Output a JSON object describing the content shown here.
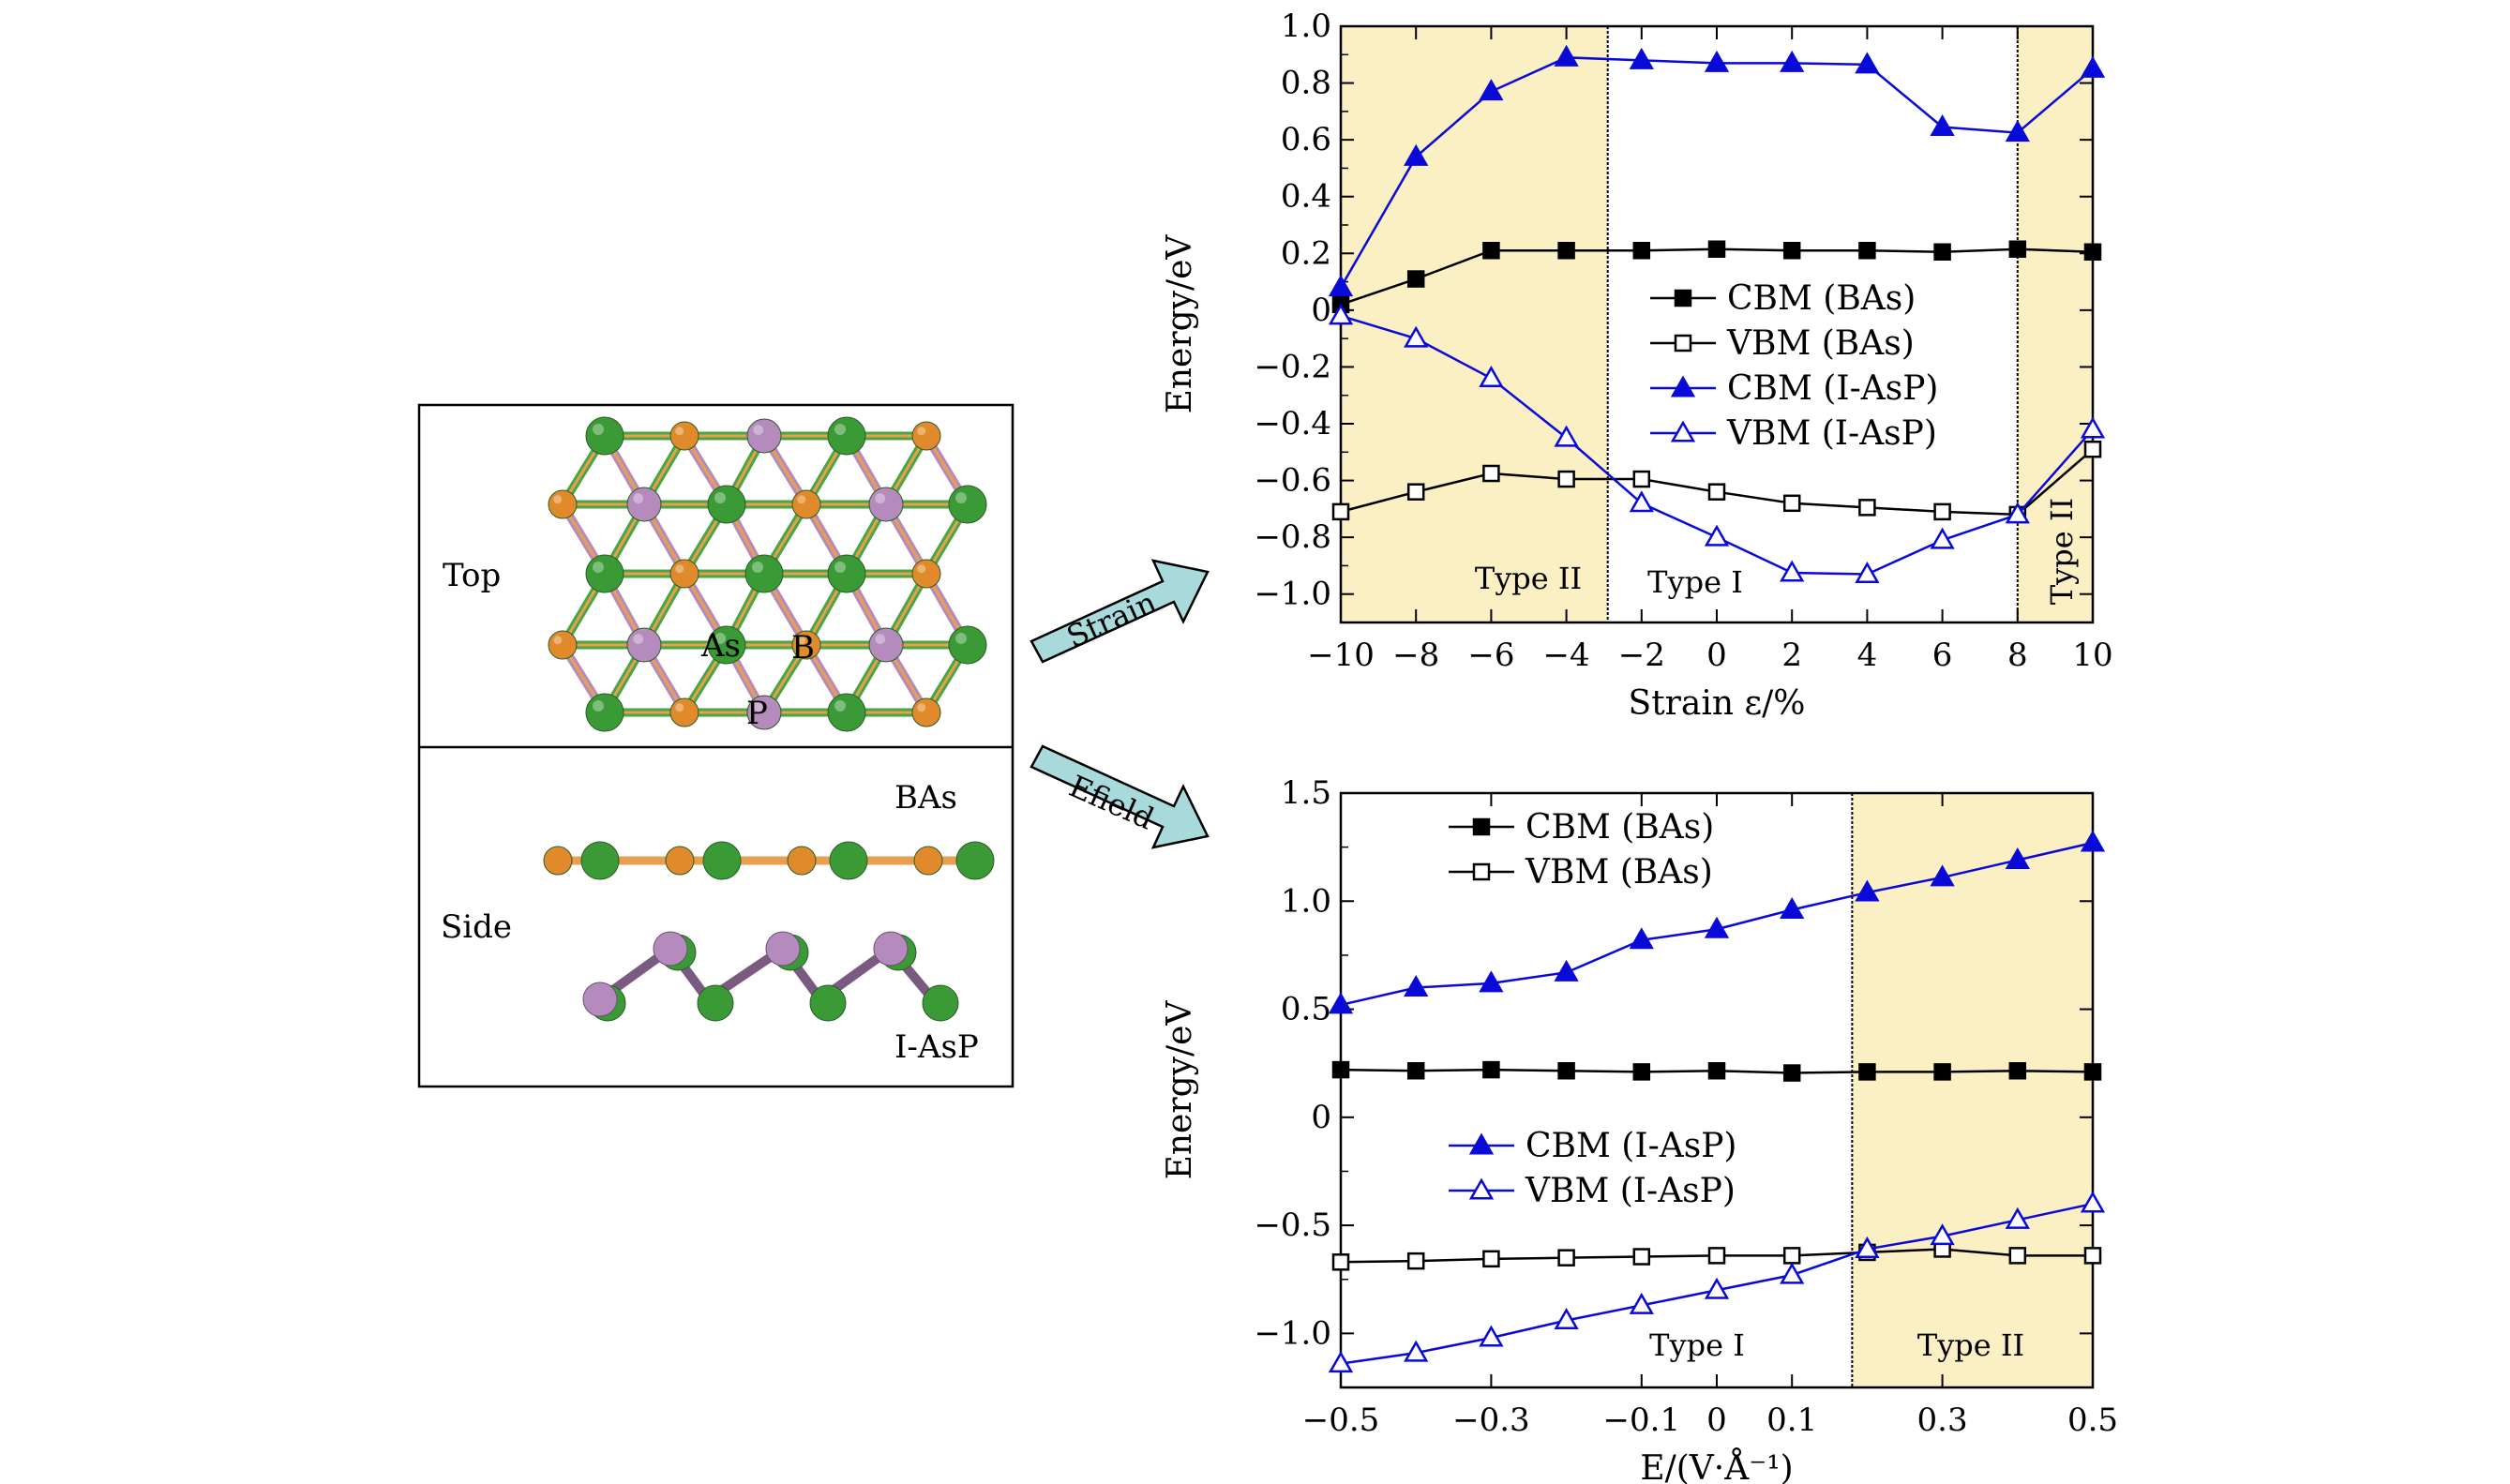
{
  "structure_panel": {
    "top_label": "Top",
    "side_label": "Side",
    "atom_as": "As",
    "atom_b": "B",
    "atom_p": "P",
    "layer_bas": "BAs",
    "layer_iasp": "I-AsP",
    "colors": {
      "b_atom": "#e08a2c",
      "as_atom": "#3a9a36",
      "p_atom": "#b58bbd"
    }
  },
  "arrows": {
    "strain": "Strain",
    "efield": "Efield",
    "fill": "#a8dadc"
  },
  "chart_data": [
    {
      "type": "line",
      "xlabel": "Strain ε/%",
      "ylabel": "Energy/eV",
      "xlim": [
        -10,
        10
      ],
      "ylim": [
        -1.1,
        1.0
      ],
      "xticks": [
        "−10",
        "−8",
        "−6",
        "−4",
        "−2",
        "0",
        "2",
        "4",
        "6",
        "8",
        "10"
      ],
      "xtick_values": [
        -10,
        -8,
        -6,
        -4,
        -2,
        0,
        2,
        4,
        6,
        8,
        10
      ],
      "yticks": [
        "1.0",
        "0.8",
        "0.6",
        "0.4",
        "0.2",
        "0",
        "−0.2",
        "−0.4",
        "−0.6",
        "−0.8",
        "−1.0"
      ],
      "ytick_values": [
        1.0,
        0.8,
        0.6,
        0.4,
        0.2,
        0,
        -0.2,
        -0.4,
        -0.6,
        -0.8,
        -1.0
      ],
      "x": [
        -10,
        -8,
        -6,
        -4,
        -2,
        0,
        2,
        4,
        6,
        8,
        10
      ],
      "series": [
        {
          "name": "CBM (BAs)",
          "color": "#000000",
          "marker": "square-filled",
          "x": [
            -10,
            -8,
            -6,
            -4,
            -2,
            0,
            2,
            4,
            6,
            8,
            10
          ],
          "values": [
            0.02,
            0.11,
            0.21,
            0.21,
            0.21,
            0.215,
            0.21,
            0.21,
            0.205,
            0.215,
            0.205
          ]
        },
        {
          "name": "VBM (BAs)",
          "color": "#000000",
          "marker": "square-open",
          "x": [
            -10,
            -8,
            -6,
            -4,
            -2,
            0,
            2,
            4,
            6,
            8,
            10
          ],
          "values": [
            -0.71,
            -0.64,
            -0.575,
            -0.595,
            -0.595,
            -0.64,
            -0.68,
            -0.695,
            -0.71,
            -0.72,
            -0.49
          ]
        },
        {
          "name": "CBM (I-AsP)",
          "color": "#0a0ad8",
          "marker": "triangle-filled",
          "x": [
            -10,
            -8,
            -6,
            -4,
            -2,
            0,
            2,
            4,
            6,
            8,
            10
          ],
          "values": [
            0.08,
            0.54,
            0.77,
            0.89,
            0.88,
            0.87,
            0.87,
            0.865,
            0.645,
            0.625,
            0.85
          ]
        },
        {
          "name": "VBM (I-AsP)",
          "color": "#0a0ad8",
          "marker": "triangle-open",
          "x": [
            -10,
            -8,
            -6,
            -4,
            -2,
            0,
            2,
            4,
            6,
            8,
            10
          ],
          "values": [
            -0.02,
            -0.1,
            -0.24,
            -0.45,
            -0.68,
            -0.8,
            -0.925,
            -0.93,
            -0.81,
            -0.72,
            -0.42
          ]
        }
      ],
      "regions": [
        {
          "label": "Type II",
          "from": -10,
          "to": -2.9,
          "fill": "#fbefc4"
        },
        {
          "label": "Type I",
          "from": -2.9,
          "to": 8,
          "fill": "#ffffff"
        },
        {
          "label": "Type II",
          "from": 8,
          "to": 10,
          "fill": "#fbefc4",
          "vertical": true
        }
      ],
      "legend_placement": "center"
    },
    {
      "type": "line",
      "xlabel": "E/(V·Å⁻¹)",
      "ylabel": "Energy/eV",
      "xlim": [
        -0.5,
        0.5
      ],
      "ylim": [
        -1.25,
        1.5
      ],
      "xticks": [
        "−0.5",
        "−0.3",
        "−0.1",
        "0",
        "0.1",
        "0.3",
        "0.5"
      ],
      "xtick_values": [
        -0.5,
        -0.3,
        -0.1,
        0,
        0.1,
        0.3,
        0.5
      ],
      "yticks": [
        "1.5",
        "1.0",
        "0.5",
        "0",
        "−0.5",
        "−1.0"
      ],
      "ytick_values": [
        1.5,
        1.0,
        0.5,
        0,
        -0.5,
        -1.0
      ],
      "series": [
        {
          "name": "CBM (BAs)",
          "color": "#000000",
          "marker": "square-filled",
          "x": [
            -0.5,
            -0.4,
            -0.3,
            -0.2,
            -0.1,
            0,
            0.1,
            0.2,
            0.3,
            0.4,
            0.5
          ],
          "values": [
            0.22,
            0.215,
            0.22,
            0.215,
            0.21,
            0.215,
            0.205,
            0.21,
            0.21,
            0.215,
            0.21
          ]
        },
        {
          "name": "VBM (BAs)",
          "color": "#000000",
          "marker": "square-open",
          "x": [
            -0.5,
            -0.4,
            -0.3,
            -0.2,
            -0.1,
            0,
            0.1,
            0.2,
            0.3,
            0.4,
            0.5
          ],
          "values": [
            -0.67,
            -0.665,
            -0.655,
            -0.65,
            -0.645,
            -0.64,
            -0.64,
            -0.625,
            -0.61,
            -0.64,
            -0.64
          ]
        },
        {
          "name": "CBM (I-AsP)",
          "color": "#0a0ad8",
          "marker": "triangle-filled",
          "x": [
            -0.5,
            -0.4,
            -0.3,
            -0.2,
            -0.1,
            0,
            0.1,
            0.2,
            0.3,
            0.4,
            0.5
          ],
          "values": [
            0.52,
            0.6,
            0.62,
            0.67,
            0.82,
            0.87,
            0.96,
            1.04,
            1.11,
            1.19,
            1.27
          ]
        },
        {
          "name": "VBM (I-AsP)",
          "color": "#0a0ad8",
          "marker": "triangle-open",
          "x": [
            -0.5,
            -0.4,
            -0.3,
            -0.2,
            -0.1,
            0,
            0.1,
            0.2,
            0.3,
            0.4,
            0.5
          ],
          "values": [
            -1.14,
            -1.09,
            -1.02,
            -0.94,
            -0.87,
            -0.8,
            -0.73,
            -0.61,
            -0.55,
            -0.475,
            -0.4
          ]
        }
      ],
      "regions": [
        {
          "label": "Type I",
          "from": -0.5,
          "to": 0.18,
          "fill": "#ffffff"
        },
        {
          "label": "Type II",
          "from": 0.18,
          "to": 0.5,
          "fill": "#fbefc4"
        }
      ],
      "legend_placement": "top-left / center-left"
    }
  ]
}
